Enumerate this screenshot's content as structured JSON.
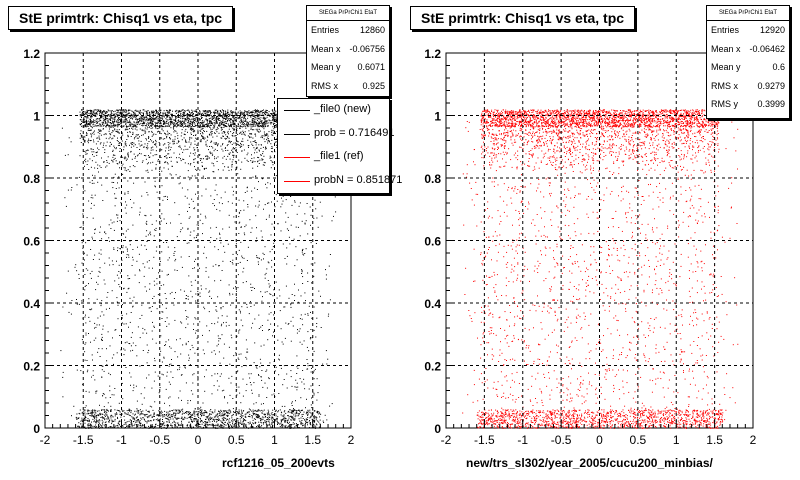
{
  "chart_data": [
    {
      "type": "scatter",
      "title": "StE primtrk: Chisq1 vs eta, tpc",
      "xlabel": "rcf1216_05_200evts",
      "xlim": [
        -2,
        2
      ],
      "ylim": [
        0,
        1.2
      ],
      "xticks": [
        "-2",
        "-1.5",
        "-1",
        "-0.5",
        "0",
        "0.5",
        "1",
        "1.5",
        "2"
      ],
      "yticks": [
        "0",
        "0.2",
        "0.4",
        "0.6",
        "0.8",
        "1",
        "1.2"
      ],
      "grid": true,
      "marker_color": "#000000",
      "stats": {
        "name": "StEGa PrPrChi1 EtaT",
        "rows": [
          {
            "label": "Entries",
            "value": "12860"
          },
          {
            "label": "Mean x",
            "value": "-0.06756"
          },
          {
            "label": "Mean y",
            "value": "0.6071"
          },
          {
            "label": "RMS x",
            "value": "0.925"
          }
        ]
      },
      "legend": [
        {
          "label": "_file0 (new)",
          "color": "#000000"
        },
        {
          "label": "prob = 0.716491",
          "color": "#000000"
        },
        {
          "label": "_file1 (ref)",
          "color": "#ff0000"
        },
        {
          "label": "probN = 0.851871",
          "color": "#ff0000"
        }
      ]
    },
    {
      "type": "scatter",
      "title": "StE primtrk: Chisq1 vs eta, tpc",
      "xlabel": "new/trs_sl302/year_2005/cucu200_minbias/",
      "xlim": [
        -2,
        2
      ],
      "ylim": [
        0,
        1.2
      ],
      "xticks": [
        "-2",
        "-1.5",
        "-1",
        "-0.5",
        "0",
        "0.5",
        "1",
        "1.5",
        "2"
      ],
      "yticks": [
        "0",
        "0.2",
        "0.4",
        "0.6",
        "0.8",
        "1",
        "1.2"
      ],
      "grid": true,
      "marker_color": "#ff0000",
      "stats": {
        "name": "StEGa PrPrChi1 EtaT",
        "rows": [
          {
            "label": "Entries",
            "value": "12920"
          },
          {
            "label": "Mean x",
            "value": "-0.06462"
          },
          {
            "label": "Mean y",
            "value": "0.6"
          },
          {
            "label": "RMS x",
            "value": "0.9279"
          },
          {
            "label": "RMS y",
            "value": "0.3999"
          }
        ]
      }
    }
  ]
}
